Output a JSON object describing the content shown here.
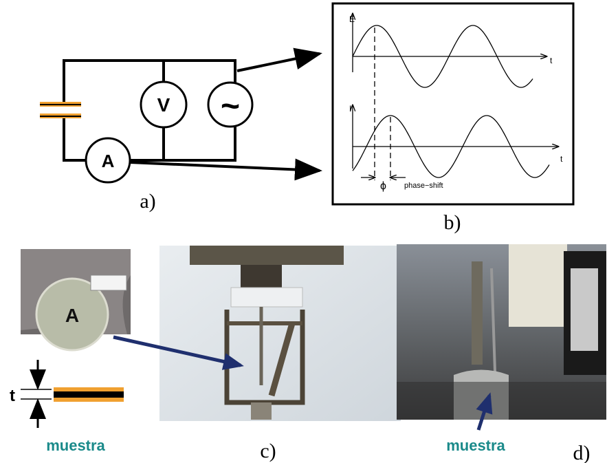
{
  "panel_a": {
    "voltmeter": "V",
    "source": "~",
    "ammeter": "A",
    "caption": "a)"
  },
  "panel_b": {
    "top_y_label": "E",
    "top_x_label": "t",
    "bottom_y_label": "I",
    "bottom_x_label": "t",
    "phase_symbol": "ϕ",
    "phase_label": "phase−shift",
    "caption": "b)"
  },
  "sample": {
    "area_label": "A",
    "thickness_label": "t",
    "name": "muestra"
  },
  "panel_c": {
    "caption": "c)"
  },
  "panel_d": {
    "label": "muestra",
    "caption": "d)"
  }
}
